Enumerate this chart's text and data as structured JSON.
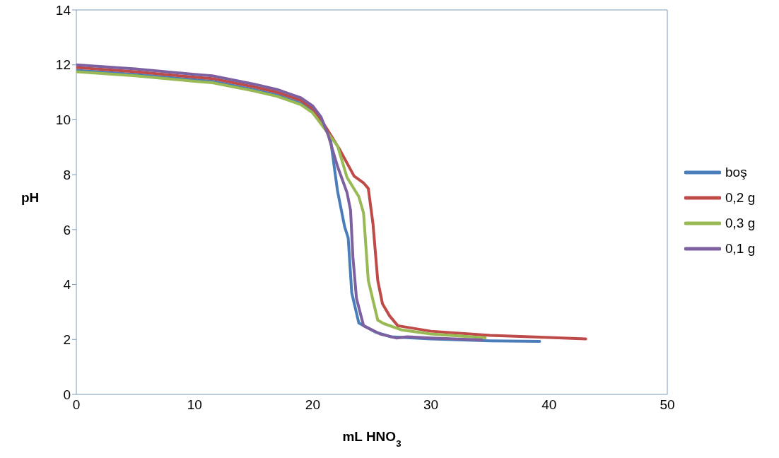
{
  "chart_data": {
    "type": "line",
    "xlabel": "mL HNO$_{3}$",
    "ylabel": "pH",
    "xlim": [
      0,
      50
    ],
    "xticks": [
      0,
      10,
      20,
      30,
      40,
      50
    ],
    "ylim": [
      0,
      14
    ],
    "yticks": [
      0,
      2,
      4,
      6,
      8,
      10,
      12,
      14
    ],
    "grid": false,
    "legend": "right",
    "marker": "none",
    "line_style": "solid",
    "series": [
      {
        "name": "boş",
        "color": "#4a7ebb",
        "x": [
          0,
          5,
          10,
          11.5,
          15,
          17,
          18,
          19,
          20,
          20.7,
          21.2,
          21.5,
          22.1,
          22.7,
          23.0,
          23.3,
          23.9,
          25.3,
          26.6,
          30,
          35,
          39.2
        ],
        "values": [
          11.8,
          11.65,
          11.45,
          11.4,
          11.1,
          10.9,
          10.75,
          10.6,
          10.3,
          9.9,
          9.6,
          9.3,
          7.4,
          6.1,
          5.7,
          3.7,
          2.6,
          2.27,
          2.1,
          2.02,
          1.95,
          1.93
        ]
      },
      {
        "name": "0,2 g",
        "color": "#be4b48",
        "x": [
          0,
          5,
          10,
          11.5,
          15,
          17,
          18,
          19,
          20,
          20.7,
          21.3,
          22.3,
          23.5,
          24.3,
          24.7,
          25.1,
          25.5,
          25.9,
          26.5,
          27.2,
          30,
          35,
          40,
          43.1
        ],
        "values": [
          11.9,
          11.75,
          11.55,
          11.5,
          11.2,
          11.0,
          10.85,
          10.7,
          10.4,
          10.0,
          9.6,
          8.9,
          7.95,
          7.7,
          7.5,
          6.2,
          4.15,
          3.3,
          2.86,
          2.5,
          2.3,
          2.15,
          2.07,
          2.02
        ]
      },
      {
        "name": "0,3 g",
        "color": "#98b954",
        "x": [
          0,
          5,
          10,
          11.5,
          15,
          17,
          18,
          19,
          20,
          20.7,
          21.3,
          22.1,
          22.9,
          23.9,
          24.3,
          24.7,
          25.5,
          26.0,
          27.5,
          30,
          34.6
        ],
        "values": [
          11.75,
          11.6,
          11.4,
          11.35,
          11.05,
          10.85,
          10.7,
          10.55,
          10.25,
          9.85,
          9.5,
          9.05,
          7.9,
          7.2,
          6.6,
          4.15,
          2.7,
          2.58,
          2.35,
          2.2,
          2.06
        ]
      },
      {
        "name": "0,1 g",
        "color": "#7d60a0",
        "x": [
          0,
          5,
          10,
          11.5,
          15,
          17,
          18,
          19,
          20,
          20.7,
          21.3,
          22.1,
          22.9,
          23.2,
          23.4,
          23.7,
          24.3,
          25.7,
          27.1,
          28,
          30,
          34.3
        ],
        "values": [
          12.0,
          11.85,
          11.65,
          11.6,
          11.3,
          11.1,
          10.95,
          10.8,
          10.5,
          10.1,
          9.45,
          8.3,
          7.35,
          6.7,
          5.0,
          3.5,
          2.5,
          2.2,
          2.05,
          2.1,
          2.05,
          1.98
        ]
      }
    ]
  }
}
